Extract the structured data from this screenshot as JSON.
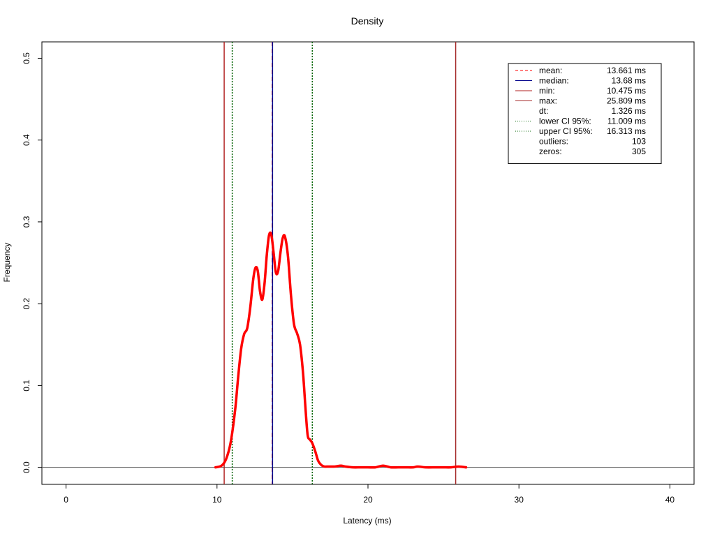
{
  "chart_data": {
    "type": "line",
    "title": "Density",
    "xlabel": "Latency (ms)",
    "ylabel": "Frequency",
    "xlim": [
      -1.6,
      41.6
    ],
    "ylim": [
      -0.0208,
      0.52
    ],
    "x_ticks": [
      0,
      10,
      20,
      30,
      40
    ],
    "y_ticks": [
      0.0,
      0.1,
      0.2,
      0.3,
      0.4,
      0.5
    ],
    "x_tick_labels": [
      "0",
      "10",
      "20",
      "30",
      "40"
    ],
    "y_tick_labels": [
      "0.0",
      "0.1",
      "0.2",
      "0.3",
      "0.4",
      "0.5"
    ],
    "baseline_y": 0,
    "series": [
      {
        "color": "#ff0000",
        "x": [
          9.9,
          10.3,
          10.6,
          10.9,
          11.2,
          11.4,
          11.6,
          11.8,
          12.0,
          12.2,
          12.4,
          12.55,
          12.7,
          12.85,
          13.0,
          13.15,
          13.3,
          13.45,
          13.6,
          13.75,
          13.9,
          14.05,
          14.2,
          14.35,
          14.5,
          14.7,
          14.9,
          15.1,
          15.3,
          15.5,
          15.7,
          15.85,
          16.0,
          16.15,
          16.3,
          16.5,
          16.7,
          16.9,
          17.1,
          17.4,
          17.8,
          18.2,
          18.5,
          19.0,
          19.5,
          20.0,
          20.5,
          21.0,
          21.5,
          22.0,
          22.5,
          23.0,
          23.3,
          23.8,
          24.5,
          25.0,
          25.5,
          26.0,
          26.5
        ],
        "y": [
          0.0,
          0.002,
          0.01,
          0.03,
          0.07,
          0.11,
          0.145,
          0.163,
          0.17,
          0.195,
          0.23,
          0.244,
          0.24,
          0.215,
          0.205,
          0.225,
          0.26,
          0.284,
          0.284,
          0.262,
          0.238,
          0.24,
          0.262,
          0.28,
          0.282,
          0.258,
          0.21,
          0.175,
          0.164,
          0.15,
          0.115,
          0.075,
          0.04,
          0.034,
          0.03,
          0.02,
          0.008,
          0.003,
          0.001,
          0.001,
          0.001,
          0.002,
          0.001,
          0.0,
          0.0,
          0.0,
          0.0,
          0.002,
          0.0,
          0.0,
          0.0,
          0.0,
          0.001,
          0.0,
          0.0,
          0.0,
          0.0,
          0.001,
          0.0
        ]
      }
    ],
    "vertical_lines": [
      {
        "name": "mean",
        "x": 13.661,
        "color": "#ff0000",
        "dash": "dashed"
      },
      {
        "name": "median",
        "x": 13.68,
        "color": "#00008b",
        "dash": "solid"
      },
      {
        "name": "min",
        "x": 10.475,
        "color": "#b22222",
        "dash": "solid"
      },
      {
        "name": "max",
        "x": 25.809,
        "color": "#a52a2a",
        "dash": "solid"
      },
      {
        "name": "lower CI 95%",
        "x": 11.009,
        "color": "#006400",
        "dash": "dotted"
      },
      {
        "name": "upper CI 95%",
        "x": 16.313,
        "color": "#006400",
        "dash": "dotted"
      }
    ],
    "legend": {
      "position": "top-right",
      "entries": [
        {
          "label": "mean:",
          "value": "13.661 ms",
          "color": "#ff0000",
          "dash": "dashed"
        },
        {
          "label": "median:",
          "value": "13.68 ms",
          "color": "#00008b",
          "dash": "solid"
        },
        {
          "label": "min:",
          "value": "10.475 ms",
          "color": "#b22222",
          "dash": "solid"
        },
        {
          "label": "max:",
          "value": "25.809 ms",
          "color": "#a52a2a",
          "dash": "solid"
        },
        {
          "label": "dt:",
          "value": "1.326 ms",
          "color": "",
          "dash": "none"
        },
        {
          "label": "lower CI 95%:",
          "value": "11.009 ms",
          "color": "#006400",
          "dash": "dotted"
        },
        {
          "label": "upper CI 95%:",
          "value": "16.313 ms",
          "color": "#006400",
          "dash": "dotted"
        },
        {
          "label": "outliers:",
          "value": "103",
          "color": "",
          "dash": "none"
        },
        {
          "label": "zeros:",
          "value": "305",
          "color": "",
          "dash": "none"
        }
      ]
    }
  }
}
